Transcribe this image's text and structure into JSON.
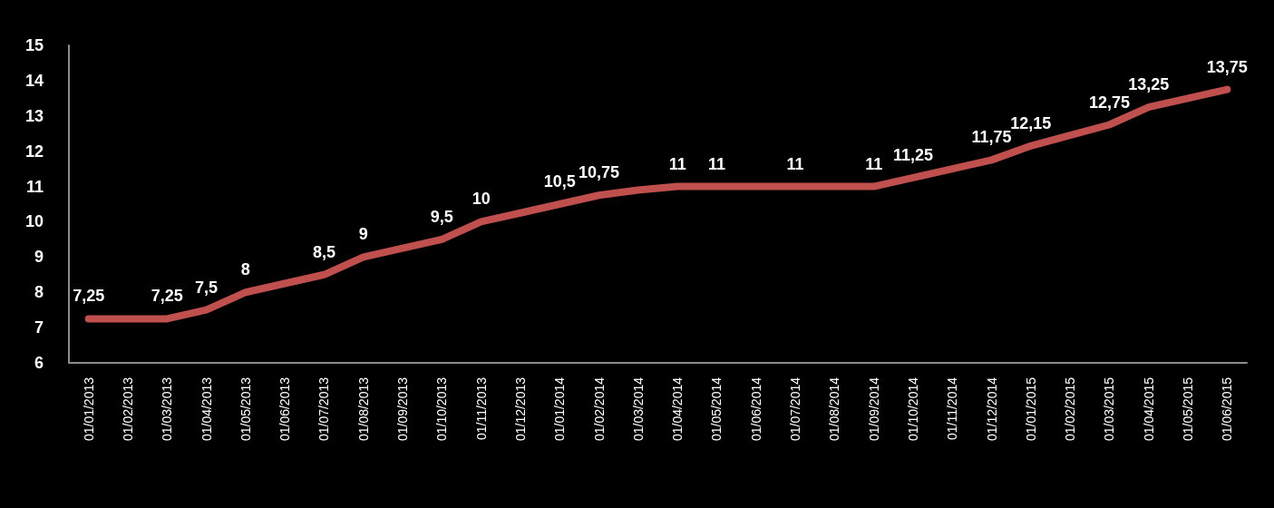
{
  "chart_data": {
    "type": "line",
    "categories": [
      "01/01/2013",
      "01/02/2013",
      "01/03/2013",
      "01/04/2013",
      "01/05/2013",
      "01/06/2013",
      "01/07/2013",
      "01/08/2013",
      "01/09/2013",
      "01/10/2013",
      "01/11/2013",
      "01/12/2013",
      "01/01/2014",
      "01/02/2014",
      "01/03/2014",
      "01/04/2014",
      "01/05/2014",
      "01/06/2014",
      "01/07/2014",
      "01/08/2014",
      "01/09/2014",
      "01/10/2014",
      "01/11/2014",
      "01/12/2014",
      "01/01/2015",
      "01/02/2015",
      "01/03/2015",
      "01/04/2015",
      "01/05/2015",
      "01/06/2015"
    ],
    "series": [
      {
        "color": "#c0504d",
        "values": [
          7.25,
          7.25,
          7.25,
          7.5,
          8,
          8.25,
          8.5,
          9,
          9.25,
          9.5,
          10,
          10.25,
          10.5,
          10.75,
          10.9,
          11,
          11,
          11,
          11,
          11,
          11,
          11.25,
          11.5,
          11.75,
          12.15,
          12.45,
          12.75,
          13.25,
          13.5,
          13.75
        ],
        "value_labels": [
          "7,25",
          null,
          "7,25",
          "7,5",
          "8",
          null,
          "8,5",
          "9",
          null,
          "9,5",
          "10",
          null,
          "10,5",
          "10,75",
          null,
          "11",
          "11",
          null,
          "11",
          null,
          "11",
          "11,25",
          null,
          "11,75",
          "12,15",
          null,
          "12,75",
          "13,25",
          null,
          "13,75"
        ]
      }
    ],
    "ylim": [
      6,
      15
    ],
    "yticks": [
      6,
      7,
      8,
      9,
      10,
      11,
      12,
      13,
      14,
      15
    ],
    "grid": false,
    "marker": "none",
    "line_style": "solid"
  }
}
